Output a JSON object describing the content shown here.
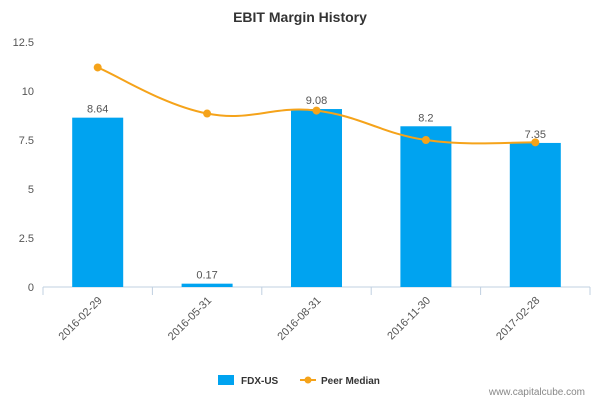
{
  "chart_data": {
    "type": "bar",
    "title": "EBIT Margin History",
    "categories": [
      "2016-02-29",
      "2016-05-31",
      "2016-08-31",
      "2016-11-30",
      "2017-02-28"
    ],
    "series": [
      {
        "name": "FDX-US",
        "type": "bar",
        "color": "#00a3f0",
        "values": [
          8.64,
          0.17,
          9.08,
          8.2,
          7.35
        ],
        "data_labels": [
          "8.64",
          "0.17",
          "9.08",
          "8.2",
          "7.35"
        ]
      },
      {
        "name": "Peer Median",
        "type": "line",
        "color": "#f5a31a",
        "values": [
          11.2,
          8.85,
          9.0,
          7.5,
          7.38
        ]
      }
    ],
    "ylim": [
      0,
      12.5
    ],
    "yticks": [
      "0",
      "2.5",
      "5",
      "7.5",
      "10",
      "12.5"
    ],
    "grid": false,
    "legend_position": "bottom"
  },
  "watermark": "www.capitalcube.com"
}
